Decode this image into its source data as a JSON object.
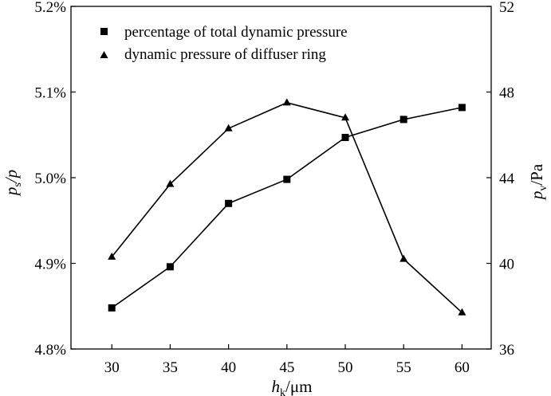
{
  "chart_data": {
    "type": "line",
    "title": "",
    "x": [
      30,
      35,
      40,
      45,
      50,
      55,
      60
    ],
    "x_ticks": [
      "30",
      "35",
      "40",
      "45",
      "50",
      "55",
      "60"
    ],
    "xlim": [
      26.5,
      62.5
    ],
    "xlabel": {
      "main": "h",
      "sub": "k",
      "unit": "/μm"
    },
    "y_left": {
      "label": {
        "main": "p",
        "sub": "s",
        "rest": "/p"
      },
      "lim": [
        4.8,
        5.2
      ],
      "ticks": [
        4.8,
        4.9,
        5.0,
        5.1,
        5.2
      ],
      "tick_labels": [
        "4.8%",
        "4.9%",
        "5.0%",
        "5.1%",
        "5.2%"
      ]
    },
    "y_right": {
      "label": {
        "main": "p",
        "sub": "v",
        "rest": "/Pa"
      },
      "lim": [
        36,
        52
      ],
      "ticks": [
        36,
        40,
        44,
        48,
        52
      ],
      "tick_labels": [
        "36",
        "40",
        "44",
        "48",
        "52"
      ]
    },
    "series": [
      {
        "name": "percentage of total dynamic pressure",
        "axis": "left",
        "marker": "square",
        "values": [
          4.848,
          4.896,
          4.97,
          4.998,
          5.047,
          5.068,
          5.082
        ]
      },
      {
        "name": "dynamic pressure of diffuser ring",
        "axis": "right",
        "marker": "triangle",
        "values": [
          40.3,
          43.7,
          46.3,
          47.5,
          46.8,
          40.2,
          37.7
        ]
      }
    ],
    "legend_position": "top-left",
    "grid": false,
    "colors": {
      "line": "#000000",
      "background": "#ffffff"
    }
  }
}
